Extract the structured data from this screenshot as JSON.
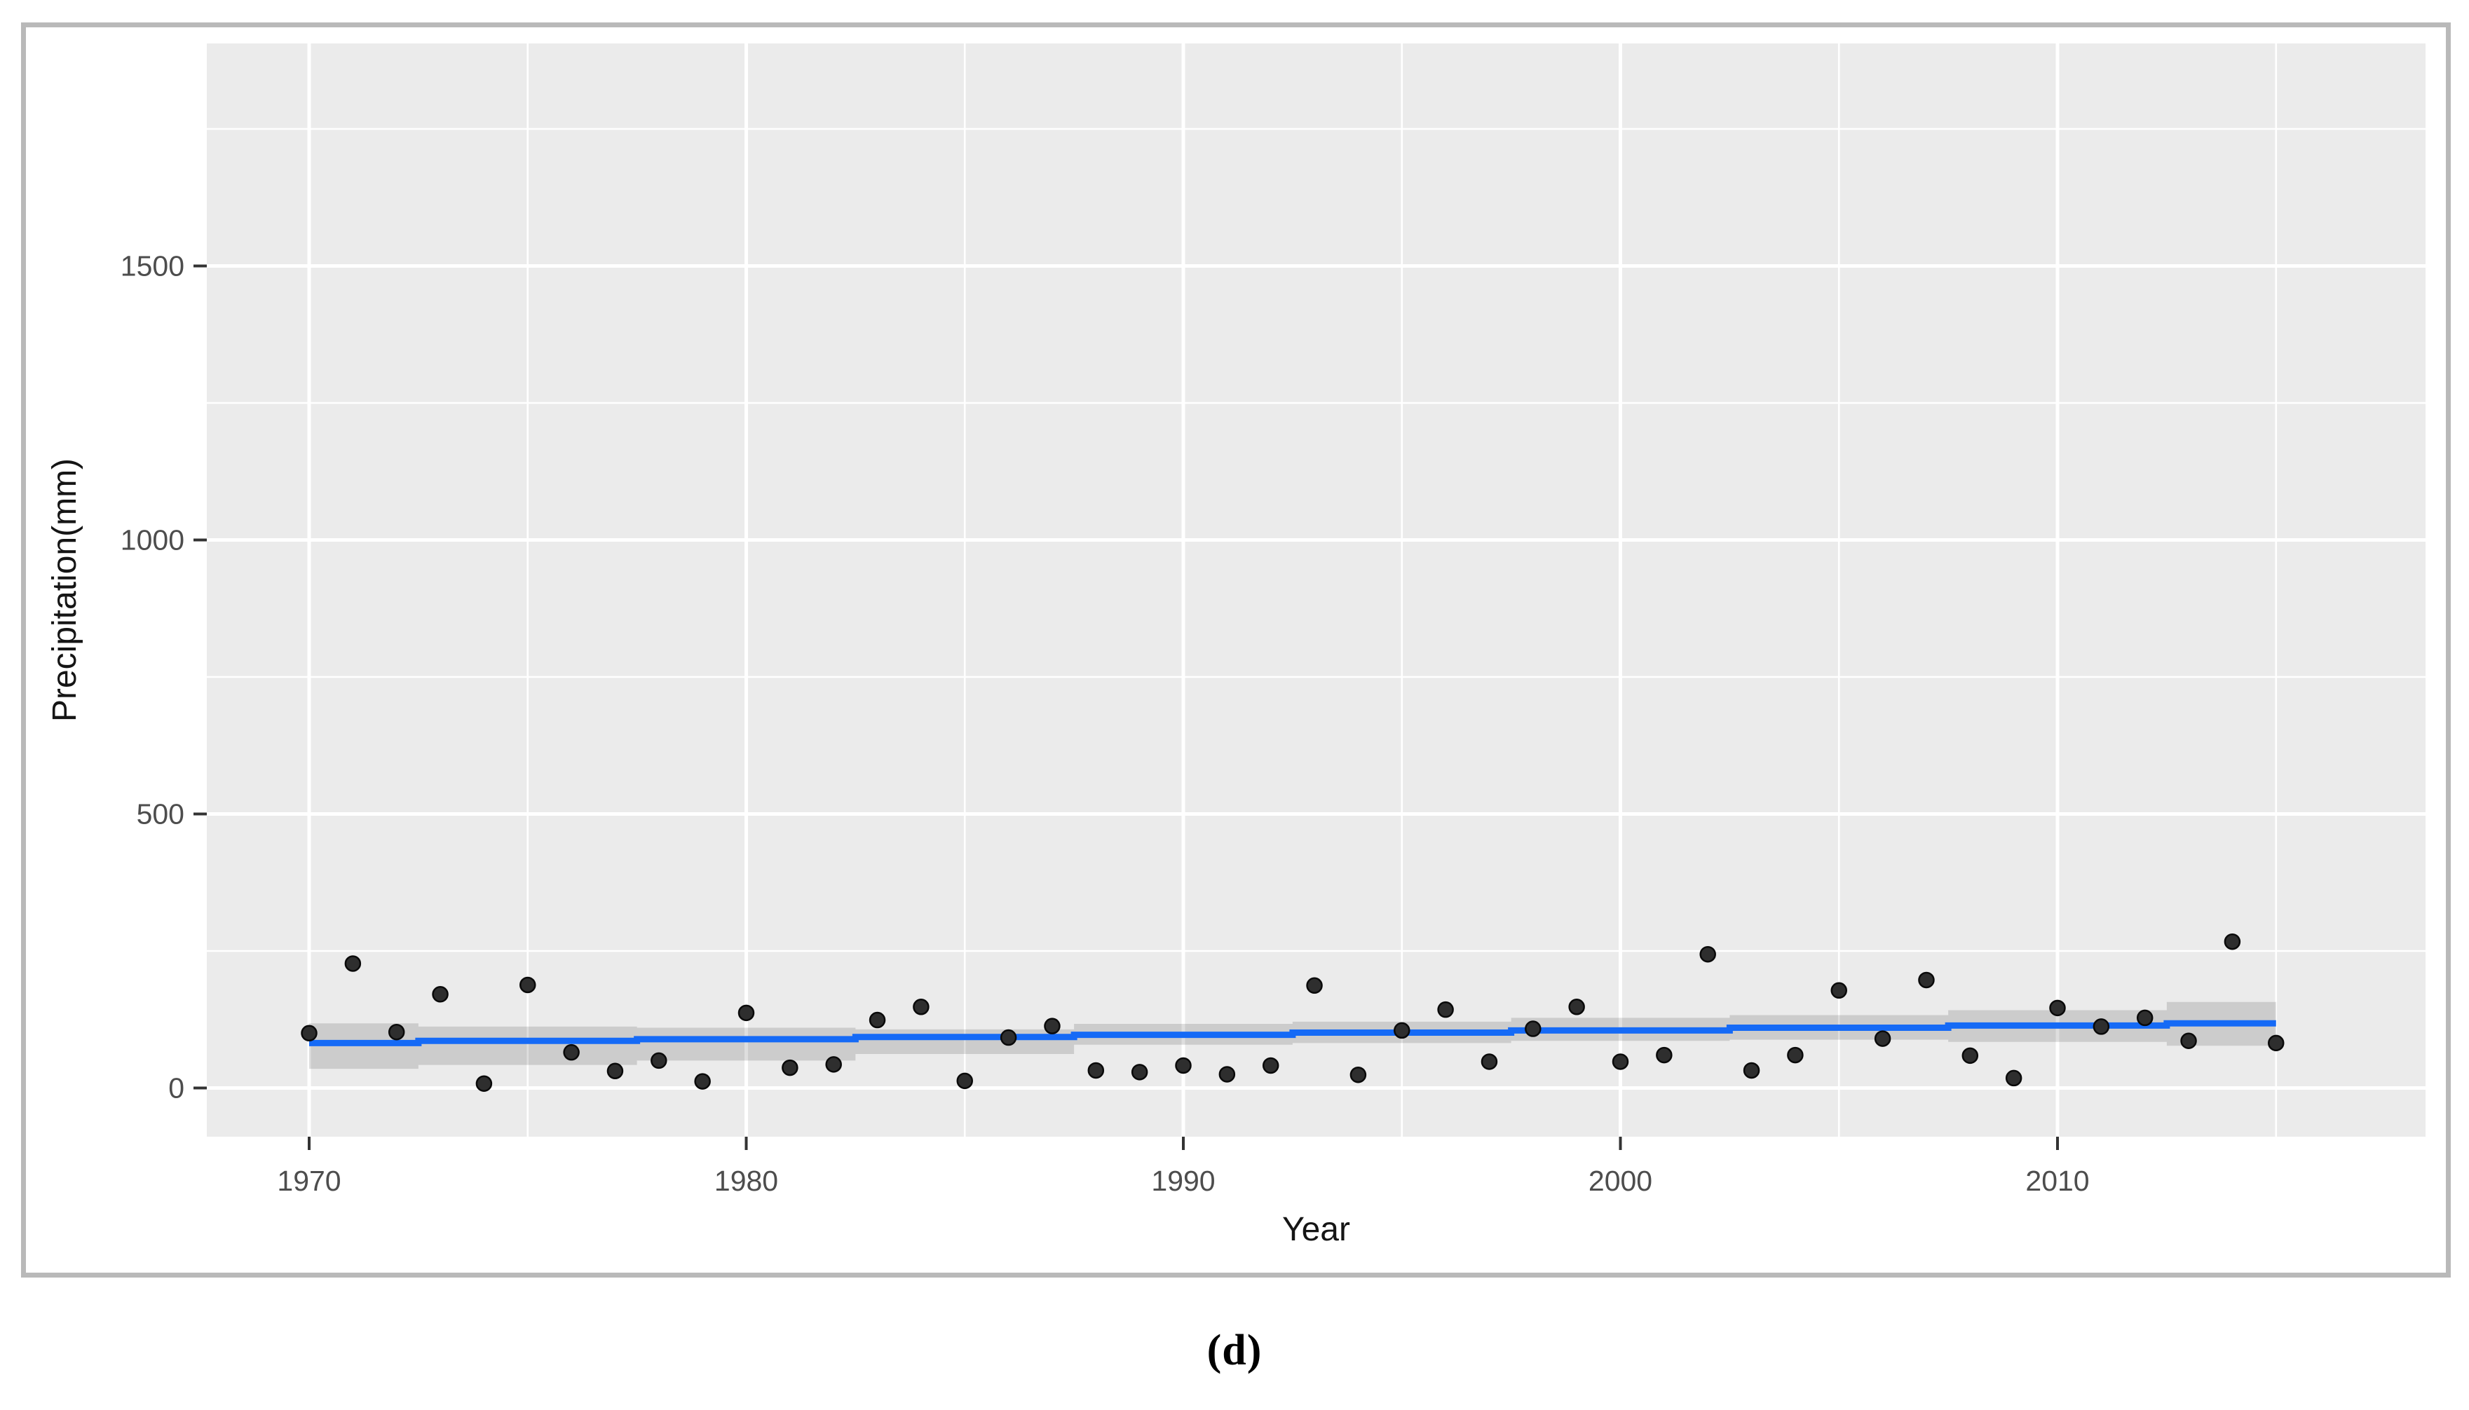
{
  "figure": {
    "caption": "(d)",
    "background": "#ffffff",
    "border_color": "#b9b9b9"
  },
  "chart_data": {
    "type": "scatter",
    "title": "",
    "xlabel": "Year",
    "ylabel": "Precipitation(mm)",
    "legend": "none",
    "grid": true,
    "panel_bg": "#ebebeb",
    "gridline_color": "#ffffff",
    "axis_tick_color": "#333333",
    "axis_text_color": "#4d4d4d",
    "axis_title_color": "#151515",
    "point_color": "#2e2e2e",
    "point_edge_color": "#0a0a0a",
    "trend_color": "#156af6",
    "band_color": "#000000",
    "band_opacity": 0.13,
    "xlim": [
      1967.66,
      2018.4
    ],
    "ylim": [
      -89,
      1906
    ],
    "x_ticks": [
      1970,
      1980,
      1990,
      2000,
      2010
    ],
    "x_minor_gridlines": [
      1975,
      1985,
      1995,
      2005,
      2015
    ],
    "y_ticks": [
      0,
      500,
      1000,
      1500
    ],
    "y_minor_gridlines": [
      250,
      750,
      1250,
      1750
    ],
    "series": [
      {
        "name": "annual-precipitation-points",
        "type": "scatter",
        "x": [
          1970,
          1971,
          1972,
          1973,
          1974,
          1975,
          1976,
          1977,
          1978,
          1979,
          1980,
          1981,
          1982,
          1983,
          1984,
          1985,
          1986,
          1987,
          1988,
          1989,
          1990,
          1991,
          1992,
          1993,
          1994,
          1995,
          1996,
          1997,
          1998,
          1999,
          2000,
          2001,
          2002,
          2003,
          2004,
          2005,
          2006,
          2007,
          2008,
          2009,
          2010,
          2011,
          2012,
          2013,
          2014,
          2015
        ],
        "y": [
          100,
          227,
          102,
          171,
          8,
          188,
          65,
          31,
          50,
          12,
          137,
          37,
          43,
          124,
          148,
          13,
          92,
          113,
          32,
          29,
          41,
          25,
          41,
          187,
          24,
          105,
          143,
          48,
          108,
          148,
          48,
          60,
          244,
          32,
          60,
          178,
          90,
          197,
          59,
          18,
          146,
          112,
          128,
          86,
          267,
          82
        ]
      },
      {
        "name": "linear-trend-line",
        "type": "line",
        "x": [
          1970,
          1975,
          1980,
          1985,
          1990,
          1995,
          2000,
          2005,
          2010,
          2015
        ],
        "y": [
          82,
          86,
          89,
          93,
          97,
          101,
          105,
          110,
          114,
          118
        ]
      },
      {
        "name": "confidence-band",
        "type": "area",
        "x": [
          1970,
          1975,
          1980,
          1985,
          1990,
          1995,
          2000,
          2005,
          2010,
          2015
        ],
        "upper": [
          118,
          112,
          110,
          107,
          117,
          121,
          128,
          133,
          142,
          157
        ],
        "lower": [
          35,
          42,
          50,
          62,
          79,
          82,
          86,
          88,
          84,
          77
        ]
      }
    ]
  }
}
